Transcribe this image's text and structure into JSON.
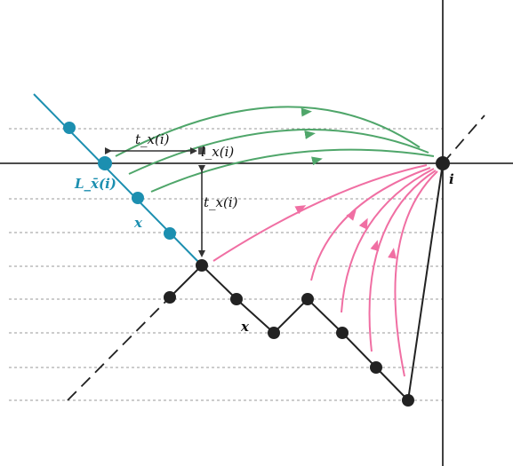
{
  "labels": {
    "t_horizontal": "t_x(i)",
    "l_label": "l_x(i)",
    "t_vertical": "t_x(i)",
    "L_label": "L_x̄(i)",
    "x_teal": "x",
    "x_black": "x",
    "i_label": "i"
  },
  "colors": {
    "teal": "#1c8fb0",
    "green": "#4fa66a",
    "pink": "#f06fa3",
    "black": "#222222",
    "grid": "#9a9a9a"
  }
}
